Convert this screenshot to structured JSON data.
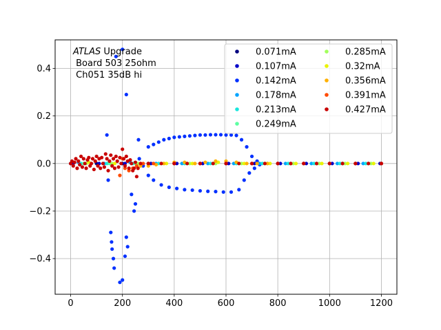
{
  "chart_data": {
    "type": "scatter",
    "title": "",
    "xlabel": "",
    "ylabel": "",
    "xlim": [
      -60,
      1260
    ],
    "ylim": [
      -0.55,
      0.52
    ],
    "grid": true,
    "legend_position": "top-right",
    "legend_columns": 2,
    "xticks": [
      0,
      200,
      400,
      600,
      800,
      1000,
      1200
    ],
    "yticks": [
      -0.4,
      -0.2,
      0.0,
      0.2,
      0.4
    ],
    "xtick_labels": [
      "0",
      "200",
      "400",
      "600",
      "800",
      "1000",
      "1200"
    ],
    "ytick_labels": [
      "−0.4",
      "−0.2",
      "0.0",
      "0.2",
      "0.4"
    ],
    "annotation": {
      "line1_italic": "ATLAS",
      "line1_rest": " Upgrade",
      "line2": " Board 503 25ohm",
      "line3": " Ch051 35dB hi"
    },
    "series": [
      {
        "name": "0.071mA",
        "color": "#00007f",
        "points": [
          [
            0,
            0.0
          ],
          [
            100,
            0.0
          ],
          [
            200,
            0.0
          ],
          [
            300,
            0.0
          ],
          [
            400,
            0.0
          ],
          [
            500,
            0.0
          ],
          [
            600,
            0.0
          ],
          [
            700,
            0.0
          ],
          [
            800,
            0.0
          ],
          [
            900,
            0.0
          ],
          [
            1000,
            0.0
          ],
          [
            1100,
            0.0
          ],
          [
            1200,
            0.0
          ]
        ]
      },
      {
        "name": "0.107mA",
        "color": "#0000c8",
        "points": [
          [
            10,
            0.0
          ],
          [
            110,
            0.0
          ],
          [
            210,
            0.0
          ],
          [
            310,
            0.0
          ],
          [
            410,
            0.0
          ],
          [
            510,
            0.0
          ],
          [
            610,
            0.0
          ],
          [
            710,
            0.0
          ],
          [
            810,
            0.0
          ],
          [
            910,
            0.0
          ],
          [
            1010,
            0.0
          ],
          [
            1110,
            0.0
          ],
          [
            1195,
            0.0
          ]
        ]
      },
      {
        "name": "0.142mA",
        "color": "#0030ff",
        "points": [
          [
            140,
            0.12
          ],
          [
            145,
            -0.07
          ],
          [
            155,
            -0.29
          ],
          [
            158,
            -0.33
          ],
          [
            160,
            -0.36
          ],
          [
            165,
            -0.4
          ],
          [
            168,
            -0.44
          ],
          [
            175,
            0.45
          ],
          [
            190,
            -0.5
          ],
          [
            200,
            -0.49
          ],
          [
            200,
            0.48
          ],
          [
            210,
            -0.39
          ],
          [
            215,
            0.29
          ],
          [
            215,
            -0.31
          ],
          [
            220,
            -0.35
          ],
          [
            235,
            -0.13
          ],
          [
            245,
            -0.2
          ],
          [
            250,
            -0.17
          ],
          [
            262,
            0.1
          ],
          [
            265,
            0.02
          ],
          [
            280,
            -0.01
          ],
          [
            300,
            0.07
          ],
          [
            320,
            0.08
          ],
          [
            340,
            0.09
          ],
          [
            360,
            0.1
          ],
          [
            380,
            0.105
          ],
          [
            400,
            0.11
          ],
          [
            420,
            0.112
          ],
          [
            440,
            0.114
          ],
          [
            460,
            0.116
          ],
          [
            480,
            0.118
          ],
          [
            500,
            0.12
          ],
          [
            520,
            0.12
          ],
          [
            540,
            0.121
          ],
          [
            560,
            0.121
          ],
          [
            580,
            0.121
          ],
          [
            600,
            0.12
          ],
          [
            620,
            0.12
          ],
          [
            640,
            0.118
          ],
          [
            660,
            0.1
          ],
          [
            680,
            0.07
          ],
          [
            700,
            0.03
          ],
          [
            720,
            0.01
          ],
          [
            300,
            -0.05
          ],
          [
            320,
            -0.07
          ],
          [
            350,
            -0.09
          ],
          [
            380,
            -0.1
          ],
          [
            410,
            -0.105
          ],
          [
            440,
            -0.11
          ],
          [
            470,
            -0.112
          ],
          [
            500,
            -0.115
          ],
          [
            530,
            -0.117
          ],
          [
            560,
            -0.118
          ],
          [
            590,
            -0.12
          ],
          [
            620,
            -0.12
          ],
          [
            650,
            -0.11
          ],
          [
            670,
            -0.07
          ],
          [
            690,
            -0.04
          ],
          [
            710,
            -0.02
          ],
          [
            730,
            -0.005
          ],
          [
            760,
            0.0
          ],
          [
            800,
            0.0
          ],
          [
            850,
            0.0
          ],
          [
            900,
            0.0
          ],
          [
            950,
            0.0
          ],
          [
            1000,
            0.0
          ],
          [
            1050,
            0.0
          ],
          [
            1100,
            0.0
          ],
          [
            1150,
            0.0
          ],
          [
            1200,
            0.0
          ]
        ]
      },
      {
        "name": "0.178mA",
        "color": "#00a4ff",
        "points": [
          [
            30,
            0.005
          ],
          [
            130,
            0.0
          ],
          [
            230,
            0.005
          ],
          [
            330,
            0.0
          ],
          [
            430,
            0.0
          ],
          [
            530,
            0.0
          ],
          [
            630,
            0.0
          ],
          [
            730,
            0.0
          ],
          [
            830,
            0.0
          ],
          [
            930,
            0.0
          ],
          [
            1030,
            0.0
          ],
          [
            1130,
            0.0
          ]
        ]
      },
      {
        "name": "0.213mA",
        "color": "#19e6dd",
        "points": [
          [
            40,
            0.0
          ],
          [
            140,
            0.0
          ],
          [
            240,
            0.0
          ],
          [
            340,
            0.0
          ],
          [
            440,
            0.0
          ],
          [
            540,
            0.0
          ],
          [
            640,
            0.0
          ],
          [
            740,
            0.0
          ],
          [
            840,
            0.0
          ],
          [
            940,
            0.0
          ],
          [
            1040,
            0.0
          ],
          [
            1140,
            0.0
          ]
        ]
      },
      {
        "name": "0.249mA",
        "color": "#5dffa2",
        "points": [
          [
            50,
            0.0
          ],
          [
            150,
            0.0
          ],
          [
            250,
            0.0
          ],
          [
            350,
            0.0
          ],
          [
            450,
            0.0
          ],
          [
            550,
            0.0
          ],
          [
            650,
            0.0
          ],
          [
            750,
            0.0
          ],
          [
            850,
            0.0
          ],
          [
            950,
            0.0
          ],
          [
            1050,
            0.0
          ],
          [
            1150,
            0.0
          ]
        ]
      },
      {
        "name": "0.285mA",
        "color": "#a2ff5d",
        "points": [
          [
            60,
            0.0
          ],
          [
            160,
            0.0
          ],
          [
            260,
            0.0
          ],
          [
            360,
            0.0
          ],
          [
            460,
            0.0
          ],
          [
            560,
            0.0
          ],
          [
            660,
            0.0
          ],
          [
            760,
            0.0
          ],
          [
            860,
            0.0
          ],
          [
            960,
            0.0
          ],
          [
            1060,
            0.0
          ],
          [
            1160,
            0.0
          ]
        ]
      },
      {
        "name": "0.32mA",
        "color": "#eaf300",
        "points": [
          [
            70,
            0.005
          ],
          [
            170,
            0.0
          ],
          [
            270,
            0.0
          ],
          [
            370,
            0.0
          ],
          [
            470,
            0.0
          ],
          [
            570,
            0.005
          ],
          [
            670,
            0.0
          ],
          [
            770,
            0.0
          ],
          [
            870,
            0.0
          ],
          [
            970,
            0.0
          ],
          [
            1070,
            0.0
          ],
          [
            1170,
            0.0
          ]
        ]
      },
      {
        "name": "0.356mA",
        "color": "#ffb000",
        "points": [
          [
            270,
            -0.01
          ],
          [
            300,
            -0.01
          ],
          [
            330,
            -0.005
          ],
          [
            360,
            0.0
          ],
          [
            400,
            0.005
          ],
          [
            440,
            0.005
          ],
          [
            480,
            0.0
          ],
          [
            520,
            0.005
          ],
          [
            560,
            0.01
          ],
          [
            600,
            0.01
          ],
          [
            640,
            0.005
          ],
          [
            680,
            0.0
          ],
          [
            720,
            0.0
          ],
          [
            760,
            0.0
          ],
          [
            800,
            0.0
          ],
          [
            850,
            0.0
          ],
          [
            900,
            0.0
          ],
          [
            950,
            0.0
          ],
          [
            1000,
            0.0
          ],
          [
            1050,
            0.0
          ],
          [
            1100,
            0.0
          ],
          [
            1150,
            0.0
          ],
          [
            1200,
            0.0
          ]
        ]
      },
      {
        "name": "0.391mA",
        "color": "#ff4b00",
        "points": [
          [
            190,
            -0.05
          ],
          [
            200,
            0.02
          ],
          [
            210,
            -0.02
          ],
          [
            225,
            -0.03
          ],
          [
            240,
            -0.02
          ],
          [
            255,
            -0.01
          ],
          [
            280,
            0.0
          ],
          [
            320,
            0.0
          ],
          [
            400,
            0.0
          ],
          [
            500,
            0.0
          ],
          [
            600,
            0.0
          ],
          [
            700,
            0.0
          ],
          [
            800,
            0.0
          ],
          [
            900,
            0.0
          ],
          [
            1000,
            0.0
          ],
          [
            1100,
            0.0
          ],
          [
            1200,
            0.0
          ]
        ]
      },
      {
        "name": "0.427mA",
        "color": "#c80000",
        "points": [
          [
            0,
            0.0
          ],
          [
            5,
            0.01
          ],
          [
            10,
            -0.01
          ],
          [
            15,
            0.005
          ],
          [
            20,
            0.02
          ],
          [
            25,
            -0.02
          ],
          [
            30,
            0.01
          ],
          [
            35,
            -0.005
          ],
          [
            40,
            0.03
          ],
          [
            45,
            -0.015
          ],
          [
            50,
            0.02
          ],
          [
            55,
            0.0
          ],
          [
            60,
            -0.02
          ],
          [
            65,
            0.015
          ],
          [
            70,
            0.025
          ],
          [
            75,
            -0.01
          ],
          [
            80,
            0.0
          ],
          [
            85,
            0.02
          ],
          [
            90,
            -0.025
          ],
          [
            95,
            0.01
          ],
          [
            100,
            0.03
          ],
          [
            105,
            -0.01
          ],
          [
            110,
            0.02
          ],
          [
            115,
            -0.02
          ],
          [
            120,
            0.025
          ],
          [
            125,
            0.0
          ],
          [
            130,
            -0.015
          ],
          [
            135,
            0.04
          ],
          [
            140,
            0.02
          ],
          [
            145,
            -0.03
          ],
          [
            150,
            0.01
          ],
          [
            155,
            0.035
          ],
          [
            160,
            -0.01
          ],
          [
            165,
            0.02
          ],
          [
            170,
            -0.02
          ],
          [
            175,
            0.03
          ],
          [
            180,
            0.01
          ],
          [
            185,
            -0.015
          ],
          [
            190,
            0.025
          ],
          [
            195,
            0.0
          ],
          [
            200,
            0.06
          ],
          [
            205,
            0.02
          ],
          [
            210,
            -0.01
          ],
          [
            215,
            0.03
          ],
          [
            220,
            0.01
          ],
          [
            225,
            -0.02
          ],
          [
            230,
            0.015
          ],
          [
            235,
            0.0
          ],
          [
            240,
            -0.03
          ],
          [
            245,
            -0.02
          ],
          [
            250,
            0.005
          ],
          [
            255,
            -0.055
          ],
          [
            260,
            -0.02
          ],
          [
            270,
            0.0
          ],
          [
            300,
            0.0
          ],
          [
            350,
            0.0
          ],
          [
            400,
            0.0
          ],
          [
            450,
            0.0
          ],
          [
            500,
            0.0
          ],
          [
            550,
            0.0
          ],
          [
            600,
            0.0
          ],
          [
            650,
            0.0
          ],
          [
            700,
            0.0
          ],
          [
            750,
            0.0
          ],
          [
            800,
            0.0
          ],
          [
            850,
            0.0
          ],
          [
            900,
            0.0
          ],
          [
            950,
            0.0
          ],
          [
            1000,
            0.0
          ],
          [
            1050,
            0.0
          ],
          [
            1100,
            0.0
          ],
          [
            1150,
            0.0
          ],
          [
            1200,
            0.0
          ]
        ]
      }
    ]
  }
}
